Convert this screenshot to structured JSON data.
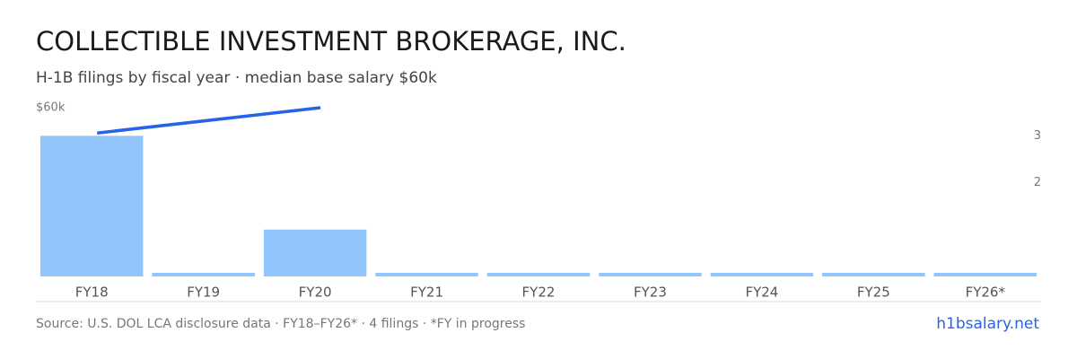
{
  "chart_data": {
    "type": "bar",
    "title": "COLLECTIBLE INVESTMENT BROKERAGE, INC.",
    "subtitle": "H-1B filings by fiscal year · median base salary $60k",
    "categories": [
      "FY18",
      "FY19",
      "FY20",
      "FY21",
      "FY22",
      "FY23",
      "FY24",
      "FY25",
      "FY26*"
    ],
    "series": [
      {
        "name": "H-1B filings",
        "type": "bar",
        "axis": "y2",
        "color": "#93c5fd",
        "values": [
          3,
          0,
          1,
          0,
          0,
          0,
          0,
          0,
          0
        ]
      },
      {
        "name": "Median base salary",
        "type": "line",
        "color": "#2563eb",
        "x": [
          "FY18",
          "FY20"
        ],
        "values": [
          51000,
          60000
        ]
      }
    ],
    "ylim": [
      0,
      60000
    ],
    "yticks": [
      {
        "value": 60000,
        "label": "$60k"
      }
    ],
    "y2lim": [
      0,
      3.6
    ],
    "y2ticks": [
      2,
      3
    ],
    "footer": "Source: U.S. DOL LCA disclosure data · FY18–FY26* · 4 filings · *FY in progress",
    "brand": "h1bsalary.net"
  }
}
